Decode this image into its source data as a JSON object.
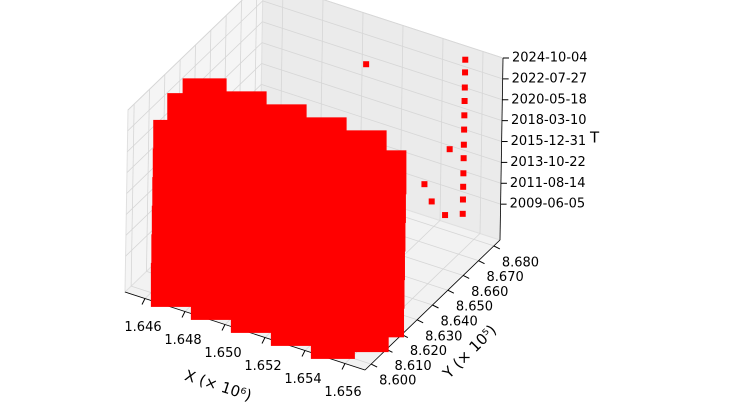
{
  "chart_data": {
    "type": "scatter3d",
    "x_label": "X (× 10⁶)",
    "y_label": "Y (× 10⁵)",
    "z_label": "T",
    "xlim": [
      1.645,
      1.657
    ],
    "xticks": [
      {
        "value": 1.646,
        "label": "1.646"
      },
      {
        "value": 1.648,
        "label": "1.648"
      },
      {
        "value": 1.65,
        "label": "1.650"
      },
      {
        "value": 1.652,
        "label": "1.652"
      },
      {
        "value": 1.654,
        "label": "1.654"
      },
      {
        "value": 1.656,
        "label": "1.656"
      }
    ],
    "ylim": [
      8.596,
      8.684
    ],
    "yticks": [
      {
        "value": 8.6,
        "label": "8.600"
      },
      {
        "value": 8.61,
        "label": "8.610"
      },
      {
        "value": 8.62,
        "label": "8.620"
      },
      {
        "value": 8.63,
        "label": "8.630"
      },
      {
        "value": 8.64,
        "label": "8.640"
      },
      {
        "value": 8.65,
        "label": "8.650"
      },
      {
        "value": 8.66,
        "label": "8.660"
      },
      {
        "value": 8.67,
        "label": "8.670"
      },
      {
        "value": 8.68,
        "label": "8.680"
      }
    ],
    "zlim": [
      "2005-09-01",
      "2024-10-04"
    ],
    "zticks": [
      "2009-06-05",
      "2011-08-14",
      "2013-10-22",
      "2015-12-31",
      "2018-03-10",
      "2020-05-18",
      "2022-07-27",
      "2024-10-04"
    ],
    "grid": true,
    "series": [
      {
        "color": "#ff0000",
        "marker": "square",
        "marker_size": 44,
        "x": [
          1.647,
          1.649,
          1.651,
          1.653,
          1.655,
          1.647,
          1.649,
          1.651,
          1.653,
          1.655,
          1.656,
          1.656,
          1.656,
          1.656,
          1.656,
          1.656,
          1.656,
          1.656,
          1.656,
          1.656,
          1.656,
          1.656,
          1.647,
          1.649,
          1.651,
          1.653,
          1.655,
          1.647,
          1.649,
          1.651,
          1.653,
          1.655,
          1.647,
          1.649,
          1.651,
          1.653,
          1.655,
          1.647,
          1.649,
          1.651,
          1.653,
          1.655,
          1.647,
          1.649,
          1.651,
          1.653,
          1.655,
          1.647,
          1.649,
          1.651,
          1.653,
          1.655
        ],
        "y": [
          8.62,
          8.62,
          8.62,
          8.62,
          8.62,
          8.61,
          8.61,
          8.61,
          8.61,
          8.61,
          8.62,
          8.62,
          8.62,
          8.62,
          8.62,
          8.62,
          8.61,
          8.61,
          8.61,
          8.61,
          8.61,
          8.61,
          8.601,
          8.601,
          8.601,
          8.601,
          8.601,
          8.601,
          8.601,
          8.601,
          8.601,
          8.601,
          8.601,
          8.601,
          8.601,
          8.601,
          8.601,
          8.601,
          8.601,
          8.601,
          8.601,
          8.601,
          8.601,
          8.601,
          8.601,
          8.601,
          8.601,
          8.601,
          8.601,
          8.601,
          8.601,
          8.601
        ],
        "z": [
          "2023-06-01",
          "2023-06-01",
          "2023-06-01",
          "2023-06-01",
          "2023-06-01",
          "2023-06-01",
          "2023-06-01",
          "2023-06-01",
          "2023-06-01",
          "2023-06-01",
          "2007-01-01",
          "2010-01-01",
          "2013-01-01",
          "2016-01-01",
          "2019-01-01",
          "2022-01-01",
          "2007-01-01",
          "2010-01-01",
          "2013-01-01",
          "2016-01-01",
          "2019-01-01",
          "2022-01-01",
          "2022-01-01",
          "2022-01-01",
          "2022-01-01",
          "2022-01-01",
          "2022-01-01",
          "2019-01-01",
          "2019-01-01",
          "2019-01-01",
          "2019-01-01",
          "2019-01-01",
          "2016-01-01",
          "2016-01-01",
          "2016-01-01",
          "2016-01-01",
          "2016-01-01",
          "2013-01-01",
          "2013-01-01",
          "2013-01-01",
          "2013-01-01",
          "2013-01-01",
          "2010-01-01",
          "2010-01-01",
          "2010-01-01",
          "2010-01-01",
          "2010-01-01",
          "2007-01-01",
          "2007-01-01",
          "2007-01-01",
          "2007-01-01",
          "2007-01-01"
        ]
      },
      {
        "color": "#ff0000",
        "marker": "square",
        "marker_size": 6,
        "x": [
          1.6555,
          1.6555,
          1.6555,
          1.6555,
          1.6555,
          1.6555,
          1.6555,
          1.6555,
          1.6555,
          1.6555,
          1.6555,
          1.6555,
          1.6565,
          1.6565,
          1.6568,
          1.652,
          1.6566
        ],
        "y": [
          8.679,
          8.679,
          8.679,
          8.679,
          8.679,
          8.679,
          8.679,
          8.679,
          8.679,
          8.679,
          8.679,
          8.679,
          8.64,
          8.645,
          8.65,
          8.66,
          8.655
        ],
        "z": [
          "2008-03-01",
          "2009-09-01",
          "2011-01-01",
          "2012-06-01",
          "2014-01-01",
          "2015-06-01",
          "2017-01-01",
          "2018-07-01",
          "2020-01-01",
          "2021-06-01",
          "2023-01-01",
          "2024-05-01",
          "2018-01-01",
          "2015-06-01",
          "2013-06-01",
          "2024-06-01",
          "2019-06-01"
        ]
      }
    ]
  }
}
